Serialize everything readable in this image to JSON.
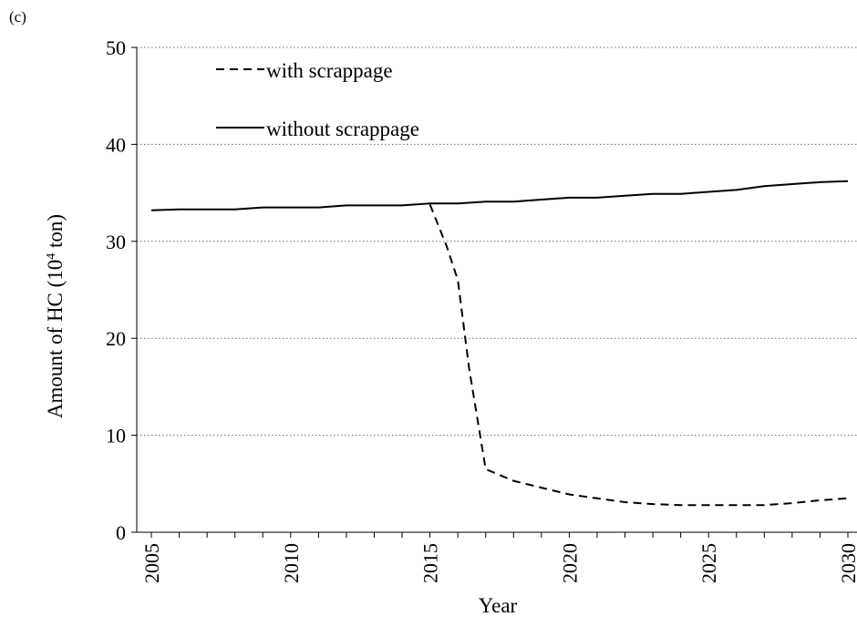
{
  "panel_label": "(c)",
  "chart_data": {
    "type": "line",
    "title": "",
    "xlabel": "Year",
    "ylabel": "Amount of HC (10",
    "ylabel_sup": "4",
    "ylabel_suffix": " ton)",
    "xlim": [
      2005,
      2030
    ],
    "ylim": [
      0,
      50
    ],
    "xticks": [
      2005,
      2010,
      2015,
      2020,
      2025,
      2030
    ],
    "yticks": [
      0,
      10,
      20,
      30,
      40,
      50
    ],
    "grid": "horizontal dotted",
    "legend_position": "top-left",
    "x": [
      2005,
      2006,
      2007,
      2008,
      2009,
      2010,
      2011,
      2012,
      2013,
      2014,
      2015,
      2016,
      2017,
      2018,
      2019,
      2020,
      2021,
      2022,
      2023,
      2024,
      2025,
      2026,
      2027,
      2028,
      2029,
      2030
    ],
    "series": [
      {
        "name": "with scrappage",
        "style": "dashed",
        "color": "#000000",
        "x": [
          2015,
          2015.6,
          2016,
          2016.4,
          2017,
          2018,
          2019,
          2020,
          2021,
          2022,
          2023,
          2024,
          2025,
          2026,
          2027,
          2028,
          2029,
          2030
        ],
        "values": [
          33.8,
          29.5,
          26.0,
          17.0,
          6.5,
          5.3,
          4.6,
          3.9,
          3.5,
          3.1,
          2.9,
          2.8,
          2.8,
          2.8,
          2.8,
          3.0,
          3.3,
          3.5
        ]
      },
      {
        "name": "without scrappage",
        "style": "solid",
        "color": "#000000",
        "x": [
          2005,
          2006,
          2007,
          2008,
          2009,
          2010,
          2011,
          2012,
          2013,
          2014,
          2015,
          2016,
          2017,
          2018,
          2019,
          2020,
          2021,
          2022,
          2023,
          2024,
          2025,
          2026,
          2027,
          2028,
          2029,
          2030
        ],
        "values": [
          33.2,
          33.3,
          33.3,
          33.3,
          33.5,
          33.5,
          33.5,
          33.7,
          33.7,
          33.7,
          33.9,
          33.9,
          34.1,
          34.1,
          34.3,
          34.5,
          34.5,
          34.7,
          34.9,
          34.9,
          35.1,
          35.3,
          35.7,
          35.9,
          36.1,
          36.2
        ]
      }
    ]
  }
}
